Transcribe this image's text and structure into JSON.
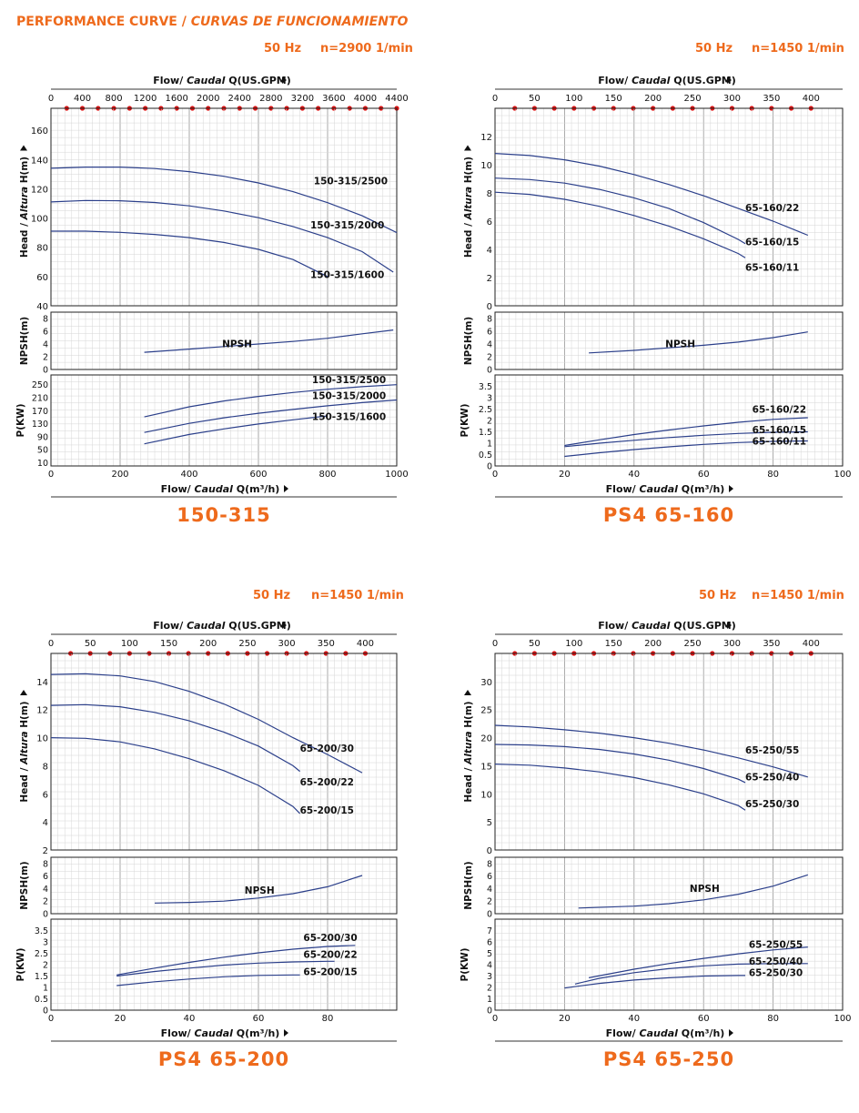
{
  "page": {
    "title_main": "PERFORMANCE CURVE",
    "title_sep": " / ",
    "title_es": "CURVAS DE FUNCIONAMIENTO",
    "accent_color": "#ee6a1c",
    "curve_color": "#2b3f8a",
    "marker_color": "#dd1111"
  },
  "chart_data": [
    {
      "type": "line",
      "model": "150-315",
      "freq": "50 Hz",
      "speed": "n=2900 1/min",
      "top_axis_label": [
        "Flow/ ",
        "Caudal",
        " Q(US.GPM)"
      ],
      "top_ticks": [
        0,
        400,
        800,
        1200,
        1600,
        2000,
        2400,
        2800,
        3200,
        3600,
        4000,
        4400
      ],
      "top_max": 4400,
      "bottom_axis_label": [
        "Flow/ ",
        "Caudal",
        " Q(m³/h)"
      ],
      "x_ticks": [
        0,
        200,
        400,
        600,
        800,
        1000
      ],
      "x_range": [
        0,
        1000
      ],
      "head": {
        "ylabel": [
          "Head / ",
          "Altura",
          " H(m)"
        ],
        "ylim": [
          40,
          175
        ],
        "yticks": [
          40,
          60,
          80,
          100,
          120,
          140,
          160
        ],
        "series": [
          {
            "name": "150-315/2500",
            "x": [
              0,
              100,
              200,
              300,
              400,
              500,
              600,
              700,
              800,
              900,
              1000
            ],
            "y": [
              134,
              134.8,
              134.8,
              133.8,
              131.7,
              128.5,
              124,
              118,
              110.5,
              101.5,
              90
            ],
            "label_x": 760,
            "label_y": 123
          },
          {
            "name": "150-315/2000",
            "x": [
              0,
              100,
              200,
              300,
              400,
              500,
              600,
              700,
              800,
              900,
              990
            ],
            "y": [
              111,
              112,
              111.8,
              110.6,
              108.3,
              104.8,
              100.2,
              94.2,
              86.6,
              77,
              63
            ],
            "label_x": 750,
            "label_y": 93
          },
          {
            "name": "150-315/1600",
            "x": [
              0,
              100,
              200,
              300,
              400,
              500,
              600,
              700,
              800
            ],
            "y": [
              91,
              91,
              90.2,
              88.8,
              86.6,
              83.3,
              78.6,
              71.6,
              60
            ],
            "label_x": 750,
            "label_y": 59
          }
        ]
      },
      "npsh": {
        "ylabel": "NPSH(m)",
        "ylim": [
          0,
          9
        ],
        "yticks": [
          0,
          2,
          4,
          6,
          8
        ],
        "label": "NPSH",
        "label_x": 495,
        "label_y": 3.5,
        "x": [
          270,
          400,
          500,
          600,
          700,
          800,
          900,
          990
        ],
        "y": [
          2.7,
          3.2,
          3.6,
          4.0,
          4.4,
          4.9,
          5.6,
          6.2
        ]
      },
      "power": {
        "ylabel": "P(KW)",
        "ylim": [
          0,
          280
        ],
        "yticks": [
          10,
          50,
          90,
          130,
          170,
          210,
          250
        ],
        "series": [
          {
            "name": "150-315/2500",
            "x": [
              270,
              400,
              500,
              600,
              700,
              800,
              900,
              1000
            ],
            "y": [
              151,
              182,
              200,
              214,
              226,
              236,
              244,
              250
            ],
            "label_x": 755,
            "label_y": 255
          },
          {
            "name": "150-315/2000",
            "x": [
              270,
              400,
              500,
              600,
              700,
              800,
              900,
              1000
            ],
            "y": [
              103,
              131,
              148,
              162,
              174,
              185,
              195,
              203
            ],
            "label_x": 755,
            "label_y": 206
          },
          {
            "name": "150-315/1600",
            "x": [
              270,
              400,
              500,
              600,
              700,
              800
            ],
            "y": [
              68,
              97,
              114,
              129,
              142,
              154
            ],
            "label_x": 755,
            "label_y": 142
          }
        ]
      }
    },
    {
      "type": "line",
      "model": "PS4 65-160",
      "freq": "50 Hz",
      "speed": "n=1450 1/min",
      "top_axis_label": [
        "Flow/ ",
        "Caudal",
        " Q(US.GPM)"
      ],
      "top_ticks": [
        0,
        50,
        100,
        150,
        200,
        250,
        300,
        350,
        400
      ],
      "top_max": 440,
      "bottom_axis_label": [
        "Flow/ ",
        "Caudal",
        " Q(m³/h)"
      ],
      "x_ticks": [
        0,
        20,
        40,
        60,
        80,
        100
      ],
      "x_range": [
        0,
        100
      ],
      "head": {
        "ylabel": [
          "Head / ",
          "Altura",
          " H(m)"
        ],
        "ylim": [
          0,
          14
        ],
        "yticks": [
          0,
          2,
          4,
          6,
          8,
          10,
          12
        ],
        "series": [
          {
            "name": "65-160/22",
            "x": [
              0,
              10,
              20,
              30,
              40,
              50,
              60,
              70,
              80,
              90
            ],
            "y": [
              10.8,
              10.65,
              10.35,
              9.9,
              9.3,
              8.6,
              7.8,
              6.9,
              6.0,
              5.0
            ],
            "label_x": 72,
            "label_y": 6.7
          },
          {
            "name": "65-160/15",
            "x": [
              0,
              10,
              20,
              30,
              40,
              50,
              60,
              70,
              72
            ],
            "y": [
              9.05,
              8.95,
              8.7,
              8.25,
              7.65,
              6.9,
              5.9,
              4.7,
              4.4
            ],
            "label_x": 72,
            "label_y": 4.3
          },
          {
            "name": "65-160/11",
            "x": [
              0,
              10,
              20,
              30,
              40,
              50,
              60,
              70,
              72
            ],
            "y": [
              8.05,
              7.9,
              7.55,
              7.05,
              6.4,
              5.65,
              4.75,
              3.7,
              3.4
            ],
            "label_x": 72,
            "label_y": 2.5
          }
        ]
      },
      "npsh": {
        "ylabel": "NPSH(m)",
        "ylim": [
          0,
          9
        ],
        "yticks": [
          0,
          2,
          4,
          6,
          8
        ],
        "label": "NPSH",
        "label_x": 49,
        "label_y": 3.5,
        "x": [
          27,
          40,
          50,
          60,
          70,
          80,
          90
        ],
        "y": [
          2.6,
          3.0,
          3.4,
          3.8,
          4.3,
          5.0,
          5.9
        ]
      },
      "power": {
        "ylabel": "P(KW)",
        "ylim": [
          0,
          4
        ],
        "yticks": [
          0,
          0.5,
          1,
          1.5,
          2,
          2.5,
          3,
          3.5
        ],
        "series": [
          {
            "name": "65-160/22",
            "x": [
              20,
              30,
              40,
              50,
              60,
              70,
              80,
              90
            ],
            "y": [
              0.9,
              1.15,
              1.38,
              1.58,
              1.76,
              1.92,
              2.05,
              2.12
            ],
            "label_x": 74,
            "label_y": 2.35
          },
          {
            "name": "65-160/15",
            "x": [
              20,
              30,
              40,
              50,
              60,
              70,
              80,
              90
            ],
            "y": [
              0.85,
              1.0,
              1.13,
              1.25,
              1.35,
              1.43,
              1.48,
              1.5
            ],
            "label_x": 74,
            "label_y": 1.45
          },
          {
            "name": "65-160/11",
            "x": [
              20,
              30,
              40,
              50,
              60,
              70,
              80,
              90
            ],
            "y": [
              0.42,
              0.58,
              0.72,
              0.84,
              0.95,
              1.03,
              1.08,
              1.1
            ],
            "label_x": 74,
            "label_y": 0.95
          }
        ]
      }
    },
    {
      "type": "line",
      "model": "PS4 65-200",
      "freq": "50 Hz",
      "speed": "n=1450 1/min",
      "top_axis_label": [
        "Flow/ ",
        "Caudal",
        " Q(US.GPM)"
      ],
      "top_ticks": [
        0,
        50,
        100,
        150,
        200,
        250,
        300,
        350,
        400
      ],
      "top_max": 440,
      "bottom_axis_label": [
        "Flow/ ",
        "Caudal",
        " Q(m³/h)"
      ],
      "x_ticks": [
        0,
        20,
        40,
        60,
        80
      ],
      "x_range": [
        0,
        100
      ],
      "head": {
        "ylabel": [
          "Head / ",
          "Altura",
          " H(m)"
        ],
        "ylim": [
          2,
          16
        ],
        "yticks": [
          2,
          4,
          6,
          8,
          10,
          12,
          14
        ],
        "series": [
          {
            "name": "65-200/30",
            "x": [
              0,
              10,
              20,
              30,
              40,
              50,
              60,
              70,
              80,
              90
            ],
            "y": [
              14.5,
              14.55,
              14.4,
              14.0,
              13.3,
              12.4,
              11.3,
              10.0,
              8.8,
              7.5
            ],
            "label_x": 72,
            "label_y": 9.0
          },
          {
            "name": "65-200/22",
            "x": [
              0,
              10,
              20,
              30,
              40,
              50,
              60,
              70,
              72
            ],
            "y": [
              12.3,
              12.35,
              12.2,
              11.8,
              11.2,
              10.4,
              9.4,
              8.0,
              7.6
            ],
            "label_x": 72,
            "label_y": 6.6
          },
          {
            "name": "65-200/15",
            "x": [
              0,
              10,
              20,
              30,
              40,
              50,
              60,
              70,
              72
            ],
            "y": [
              10.0,
              9.95,
              9.7,
              9.2,
              8.5,
              7.65,
              6.6,
              5.1,
              4.6
            ],
            "label_x": 72,
            "label_y": 4.6
          }
        ]
      },
      "npsh": {
        "ylabel": "NPSH(m)",
        "ylim": [
          0,
          9
        ],
        "yticks": [
          0,
          2,
          4,
          6,
          8
        ],
        "label": "NPSH",
        "label_x": 56,
        "label_y": 3.2,
        "x": [
          30,
          40,
          50,
          60,
          70,
          80,
          90
        ],
        "y": [
          1.7,
          1.8,
          2.0,
          2.5,
          3.2,
          4.3,
          6.1
        ]
      },
      "power": {
        "ylabel": "P(KW)",
        "ylim": [
          0,
          4
        ],
        "yticks": [
          0,
          0.5,
          1,
          1.5,
          2,
          2.5,
          3,
          3.5
        ],
        "series": [
          {
            "name": "65-200/30",
            "x": [
              19,
              30,
              40,
              50,
              60,
              70,
              80,
              88
            ],
            "y": [
              1.55,
              1.85,
              2.1,
              2.33,
              2.52,
              2.68,
              2.8,
              2.85
            ],
            "label_x": 73,
            "label_y": 3.05
          },
          {
            "name": "65-200/22",
            "x": [
              19,
              30,
              40,
              50,
              60,
              70,
              80,
              82
            ],
            "y": [
              1.5,
              1.7,
              1.85,
              1.98,
              2.07,
              2.12,
              2.15,
              2.15
            ],
            "label_x": 73,
            "label_y": 2.3
          },
          {
            "name": "65-200/15",
            "x": [
              19,
              30,
              40,
              50,
              60,
              70,
              72
            ],
            "y": [
              1.08,
              1.25,
              1.37,
              1.47,
              1.53,
              1.55,
              1.55
            ],
            "label_x": 73,
            "label_y": 1.55
          }
        ]
      }
    },
    {
      "type": "line",
      "model": "PS4 65-250",
      "freq": "50 Hz",
      "speed": "n=1450 1/min",
      "top_axis_label": [
        "Flow/ ",
        "Caudal",
        " Q(US.GPM)"
      ],
      "top_ticks": [
        0,
        50,
        100,
        150,
        200,
        250,
        300,
        350,
        400
      ],
      "top_max": 440,
      "bottom_axis_label": [
        "Flow/ ",
        "Caudal",
        " Q(m³/h)"
      ],
      "x_ticks": [
        0,
        20,
        40,
        60,
        80,
        100
      ],
      "x_range": [
        0,
        100
      ],
      "head": {
        "ylabel": [
          "Head / ",
          "Altura",
          " H(m)"
        ],
        "ylim": [
          0,
          35
        ],
        "yticks": [
          0,
          5,
          10,
          15,
          20,
          25,
          30
        ],
        "series": [
          {
            "name": "65-250/55",
            "x": [
              0,
              10,
              20,
              30,
              40,
              50,
              60,
              70,
              80,
              90
            ],
            "y": [
              22.2,
              21.9,
              21.4,
              20.8,
              20.0,
              19.0,
              17.8,
              16.4,
              14.8,
              13.0
            ],
            "label_x": 72,
            "label_y": 17.2
          },
          {
            "name": "65-250/40",
            "x": [
              0,
              10,
              20,
              30,
              40,
              50,
              60,
              70,
              72
            ],
            "y": [
              18.8,
              18.7,
              18.4,
              17.9,
              17.1,
              16.0,
              14.5,
              12.6,
              12.0
            ],
            "label_x": 72,
            "label_y": 12.4
          },
          {
            "name": "65-250/30",
            "x": [
              0,
              10,
              20,
              30,
              40,
              50,
              60,
              70,
              72
            ],
            "y": [
              15.3,
              15.1,
              14.6,
              13.9,
              12.9,
              11.6,
              10.0,
              7.9,
              7.1
            ],
            "label_x": 72,
            "label_y": 7.6
          }
        ]
      },
      "npsh": {
        "ylabel": "NPSH(m)",
        "ylim": [
          0,
          9
        ],
        "yticks": [
          0,
          2,
          4,
          6,
          8
        ],
        "label": "NPSH",
        "label_x": 56,
        "label_y": 3.5,
        "x": [
          24,
          40,
          50,
          60,
          70,
          80,
          90
        ],
        "y": [
          0.9,
          1.2,
          1.6,
          2.2,
          3.1,
          4.4,
          6.2
        ]
      },
      "power": {
        "ylabel": "P(KW)",
        "ylim": [
          0,
          8
        ],
        "yticks": [
          0,
          1,
          2,
          3,
          4,
          5,
          6,
          7
        ],
        "series": [
          {
            "name": "65-250/55",
            "x": [
              27,
              40,
              50,
              60,
              70,
              80,
              90
            ],
            "y": [
              2.85,
              3.6,
              4.1,
              4.55,
              4.95,
              5.3,
              5.55
            ],
            "label_x": 73,
            "label_y": 5.5
          },
          {
            "name": "65-250/40",
            "x": [
              23,
              30,
              40,
              50,
              60,
              70,
              80,
              90
            ],
            "y": [
              2.3,
              2.8,
              3.3,
              3.65,
              3.9,
              4.05,
              4.1,
              4.1
            ],
            "label_x": 73,
            "label_y": 4.0
          },
          {
            "name": "65-250/30",
            "x": [
              20,
              30,
              40,
              50,
              60,
              70,
              72
            ],
            "y": [
              1.95,
              2.35,
              2.65,
              2.85,
              3.0,
              3.05,
              3.05
            ],
            "label_x": 73,
            "label_y": 3.0
          }
        ]
      }
    }
  ]
}
